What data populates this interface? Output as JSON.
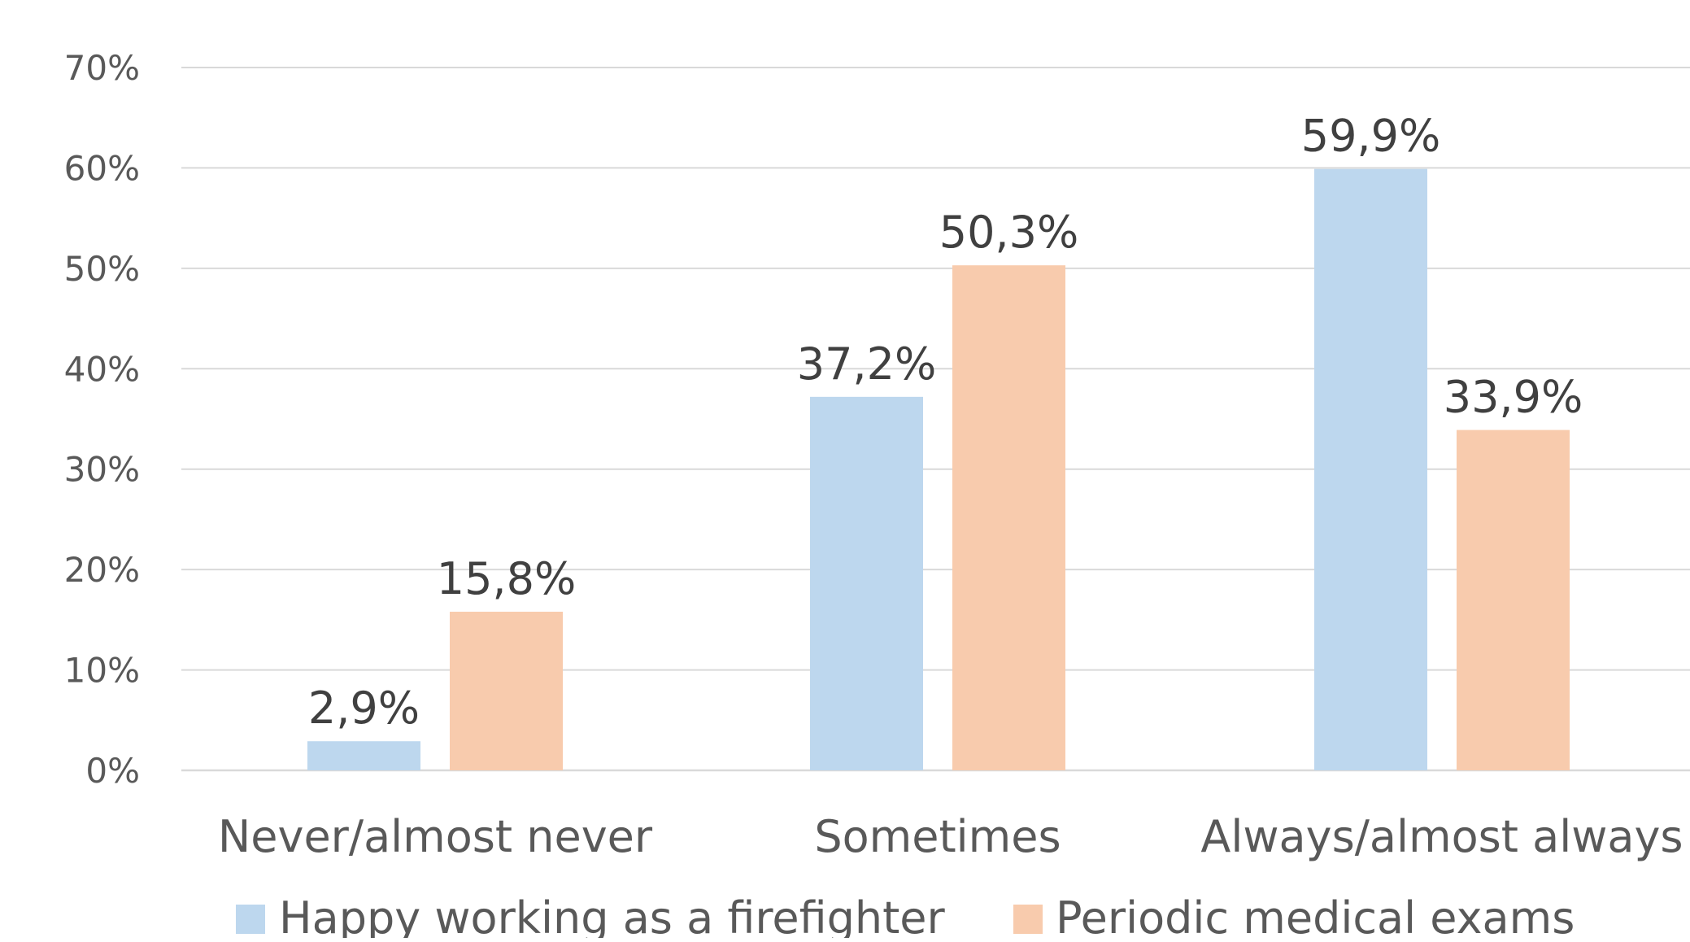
{
  "chart_data": {
    "type": "bar",
    "categories": [
      "Never/almost never",
      "Sometimes",
      "Always/almost always"
    ],
    "series": [
      {
        "name": "Happy working as a firefighter",
        "values": [
          2.9,
          37.2,
          59.9
        ],
        "labels": [
          "2,9%",
          "37,2%",
          "59,9%"
        ],
        "color": "#bdd7ee"
      },
      {
        "name": "Periodic medical exams",
        "values": [
          15.8,
          50.3,
          33.9
        ],
        "labels": [
          "15,8%",
          "50,3%",
          "33,9%"
        ],
        "color": "#f8cbad"
      }
    ],
    "yticks": [
      "0%",
      "10%",
      "20%",
      "30%",
      "40%",
      "50%",
      "60%",
      "70%"
    ],
    "ylim": [
      0,
      70
    ],
    "grid": true,
    "legend": "bottom",
    "gridline_color": "#d9d9d9",
    "text_color": "#595959",
    "data_label_color": "#404040"
  }
}
